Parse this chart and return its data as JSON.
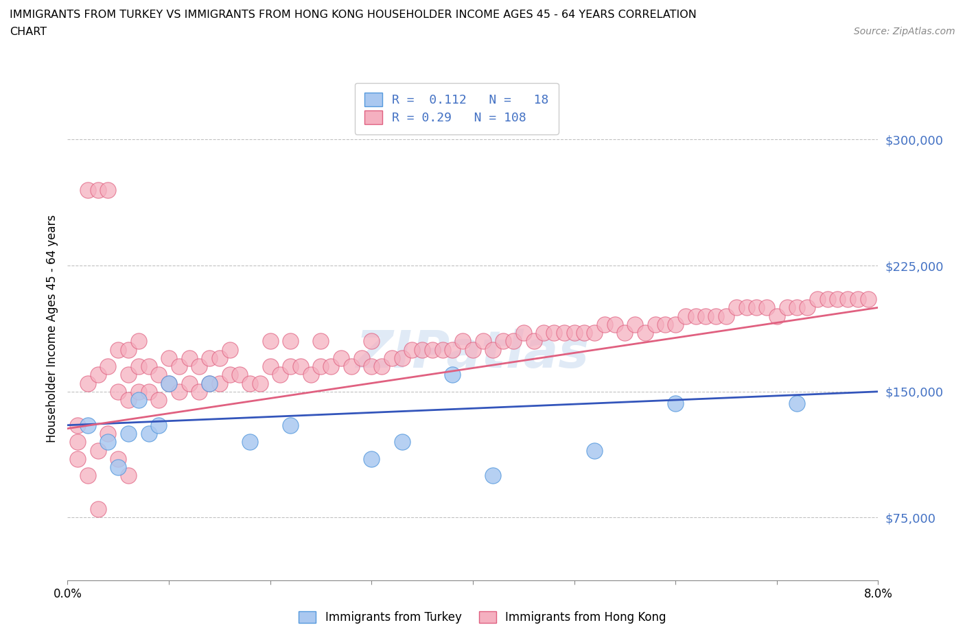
{
  "title_line1": "IMMIGRANTS FROM TURKEY VS IMMIGRANTS FROM HONG KONG HOUSEHOLDER INCOME AGES 45 - 64 YEARS CORRELATION",
  "title_line2": "CHART",
  "source_text": "Source: ZipAtlas.com",
  "ylabel": "Householder Income Ages 45 - 64 years",
  "xlim": [
    0.0,
    0.08
  ],
  "ylim": [
    37500,
    337500
  ],
  "yticks": [
    75000,
    150000,
    225000,
    300000
  ],
  "ytick_labels": [
    "$75,000",
    "$150,000",
    "$225,000",
    "$300,000"
  ],
  "xticks": [
    0.0,
    0.01,
    0.02,
    0.03,
    0.04,
    0.05,
    0.06,
    0.07,
    0.08
  ],
  "xtick_labels": [
    "0.0%",
    "",
    "",
    "",
    "",
    "",
    "",
    "",
    "8.0%"
  ],
  "turkey_color": "#aac8f0",
  "turkey_edge_color": "#5599dd",
  "hk_color": "#f5b0c0",
  "hk_edge_color": "#e06080",
  "turkey_line_color": "#3355bb",
  "hk_line_color": "#e06080",
  "turkey_R": 0.112,
  "turkey_N": 18,
  "hk_R": 0.29,
  "hk_N": 108,
  "watermark": "ZIPatlas",
  "legend_label_turkey": "Immigrants from Turkey",
  "legend_label_hk": "Immigrants from Hong Kong",
  "turkey_x": [
    0.002,
    0.004,
    0.005,
    0.006,
    0.007,
    0.008,
    0.009,
    0.01,
    0.014,
    0.018,
    0.022,
    0.03,
    0.033,
    0.038,
    0.042,
    0.052,
    0.06,
    0.072
  ],
  "turkey_y": [
    130000,
    120000,
    105000,
    125000,
    145000,
    125000,
    130000,
    155000,
    155000,
    120000,
    130000,
    110000,
    120000,
    160000,
    100000,
    115000,
    143000,
    143000
  ],
  "hk_x": [
    0.001,
    0.002,
    0.002,
    0.003,
    0.003,
    0.004,
    0.004,
    0.005,
    0.005,
    0.006,
    0.006,
    0.006,
    0.007,
    0.007,
    0.007,
    0.008,
    0.008,
    0.009,
    0.009,
    0.01,
    0.01,
    0.011,
    0.011,
    0.012,
    0.012,
    0.013,
    0.013,
    0.014,
    0.014,
    0.015,
    0.015,
    0.016,
    0.016,
    0.017,
    0.018,
    0.019,
    0.02,
    0.02,
    0.021,
    0.022,
    0.022,
    0.023,
    0.024,
    0.025,
    0.025,
    0.026,
    0.027,
    0.028,
    0.029,
    0.03,
    0.03,
    0.031,
    0.032,
    0.033,
    0.034,
    0.035,
    0.036,
    0.037,
    0.038,
    0.039,
    0.04,
    0.041,
    0.042,
    0.043,
    0.044,
    0.045,
    0.046,
    0.047,
    0.048,
    0.049,
    0.05,
    0.051,
    0.052,
    0.053,
    0.054,
    0.055,
    0.056,
    0.057,
    0.058,
    0.059,
    0.06,
    0.061,
    0.062,
    0.063,
    0.064,
    0.065,
    0.066,
    0.067,
    0.068,
    0.069,
    0.07,
    0.071,
    0.072,
    0.073,
    0.074,
    0.075,
    0.076,
    0.077,
    0.078,
    0.079,
    0.001,
    0.001,
    0.002,
    0.003,
    0.003,
    0.004,
    0.005,
    0.006
  ],
  "hk_y": [
    130000,
    155000,
    270000,
    160000,
    270000,
    165000,
    270000,
    150000,
    175000,
    145000,
    160000,
    175000,
    150000,
    165000,
    180000,
    150000,
    165000,
    145000,
    160000,
    155000,
    170000,
    150000,
    165000,
    155000,
    170000,
    150000,
    165000,
    155000,
    170000,
    155000,
    170000,
    160000,
    175000,
    160000,
    155000,
    155000,
    165000,
    180000,
    160000,
    165000,
    180000,
    165000,
    160000,
    165000,
    180000,
    165000,
    170000,
    165000,
    170000,
    165000,
    180000,
    165000,
    170000,
    170000,
    175000,
    175000,
    175000,
    175000,
    175000,
    180000,
    175000,
    180000,
    175000,
    180000,
    180000,
    185000,
    180000,
    185000,
    185000,
    185000,
    185000,
    185000,
    185000,
    190000,
    190000,
    185000,
    190000,
    185000,
    190000,
    190000,
    190000,
    195000,
    195000,
    195000,
    195000,
    195000,
    200000,
    200000,
    200000,
    200000,
    195000,
    200000,
    200000,
    200000,
    205000,
    205000,
    205000,
    205000,
    205000,
    205000,
    110000,
    120000,
    100000,
    115000,
    80000,
    125000,
    110000,
    100000
  ]
}
